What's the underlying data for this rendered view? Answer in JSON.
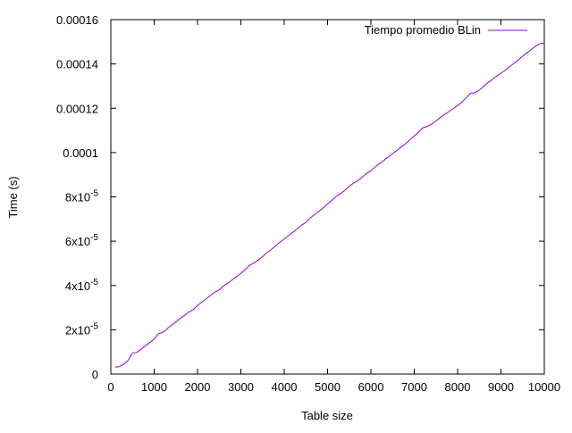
{
  "chart_data": {
    "type": "line",
    "title": "",
    "xlabel": "Table size",
    "ylabel": "Time (s)",
    "xlim": [
      0,
      10000
    ],
    "ylim": [
      0,
      0.00016
    ],
    "x_ticks": [
      {
        "value": 0,
        "label": "0"
      },
      {
        "value": 1000,
        "label": "1000"
      },
      {
        "value": 2000,
        "label": "2000"
      },
      {
        "value": 3000,
        "label": "3000"
      },
      {
        "value": 4000,
        "label": "4000"
      },
      {
        "value": 5000,
        "label": "5000"
      },
      {
        "value": 6000,
        "label": "6000"
      },
      {
        "value": 7000,
        "label": "7000"
      },
      {
        "value": 8000,
        "label": "8000"
      },
      {
        "value": 9000,
        "label": "9000"
      },
      {
        "value": 10000,
        "label": "10000"
      }
    ],
    "y_ticks": [
      {
        "value": 0,
        "label": "0"
      },
      {
        "value": 2e-05,
        "label": "2x10",
        "exp": "-5"
      },
      {
        "value": 4e-05,
        "label": "4x10",
        "exp": "-5"
      },
      {
        "value": 6e-05,
        "label": "6x10",
        "exp": "-5"
      },
      {
        "value": 8e-05,
        "label": "8x10",
        "exp": "-5"
      },
      {
        "value": 0.0001,
        "label": "0.0001"
      },
      {
        "value": 0.00012,
        "label": "0.00012"
      },
      {
        "value": 0.00014,
        "label": "0.00014"
      },
      {
        "value": 0.00016,
        "label": "0.00016"
      }
    ],
    "grid": false,
    "legend_position": "top-right",
    "series": [
      {
        "name": "Tiempo promedio BLin",
        "color": "#9400d3",
        "x": [
          100,
          200,
          300,
          400,
          500,
          600,
          700,
          800,
          900,
          1000,
          1100,
          1200,
          1300,
          1400,
          1500,
          1600,
          1700,
          1800,
          1900,
          2000,
          2100,
          2200,
          2300,
          2400,
          2500,
          2600,
          2700,
          2800,
          2900,
          3000,
          3100,
          3200,
          3300,
          3400,
          3500,
          3600,
          3700,
          3800,
          3900,
          4000,
          4100,
          4200,
          4300,
          4400,
          4500,
          4600,
          4700,
          4800,
          4900,
          5000,
          5100,
          5200,
          5300,
          5400,
          5500,
          5600,
          5700,
          5800,
          5900,
          6000,
          6100,
          6200,
          6300,
          6400,
          6500,
          6600,
          6700,
          6800,
          6900,
          7000,
          7100,
          7200,
          7300,
          7400,
          7500,
          7600,
          7700,
          7800,
          7900,
          8000,
          8100,
          8200,
          8300,
          8400,
          8500,
          8600,
          8700,
          8800,
          8900,
          9000,
          9100,
          9200,
          9300,
          9400,
          9500,
          9600,
          9700,
          9800,
          9900,
          10000
        ],
        "y": [
          3.2e-06,
          3.4e-06,
          4.5e-06,
          6.2e-06,
          9.5e-06,
          9.8e-06,
          1.12e-05,
          1.28e-05,
          1.42e-05,
          1.58e-05,
          1.82e-05,
          1.88e-05,
          2.05e-05,
          2.2e-05,
          2.35e-05,
          2.52e-05,
          2.65e-05,
          2.8e-05,
          2.9e-05,
          3.1e-05,
          3.25e-05,
          3.4e-05,
          3.55e-05,
          3.7e-05,
          3.8e-05,
          3.98e-05,
          4.1e-05,
          4.25e-05,
          4.4e-05,
          4.55e-05,
          4.72e-05,
          4.9e-05,
          5.02e-05,
          5.15e-05,
          5.3e-05,
          5.48e-05,
          5.62e-05,
          5.78e-05,
          5.95e-05,
          6.1e-05,
          6.25e-05,
          6.4e-05,
          6.55e-05,
          6.72e-05,
          6.85e-05,
          7.05e-05,
          7.2e-05,
          7.35e-05,
          7.5e-05,
          7.68e-05,
          7.85e-05,
          8.02e-05,
          8.15e-05,
          8.3e-05,
          8.48e-05,
          8.62e-05,
          8.72e-05,
          8.9e-05,
          9.05e-05,
          9.18e-05,
          9.35e-05,
          9.5e-05,
          9.65e-05,
          9.8e-05,
          9.95e-05,
          0.000101,
          0.0001025,
          0.000104,
          0.0001058,
          0.0001075,
          0.0001092,
          0.0001112,
          0.0001118,
          0.0001128,
          0.0001142,
          0.0001158,
          0.0001172,
          0.0001185,
          0.0001198,
          0.0001212,
          0.0001228,
          0.0001248,
          0.0001268,
          0.000127,
          0.0001282,
          0.0001298,
          0.0001315,
          0.000133,
          0.0001345,
          0.0001358,
          0.0001372,
          0.0001388,
          0.0001402,
          0.0001418,
          0.0001435,
          0.000145,
          0.0001465,
          0.000148,
          0.0001492,
          0.0001495
        ]
      }
    ]
  }
}
